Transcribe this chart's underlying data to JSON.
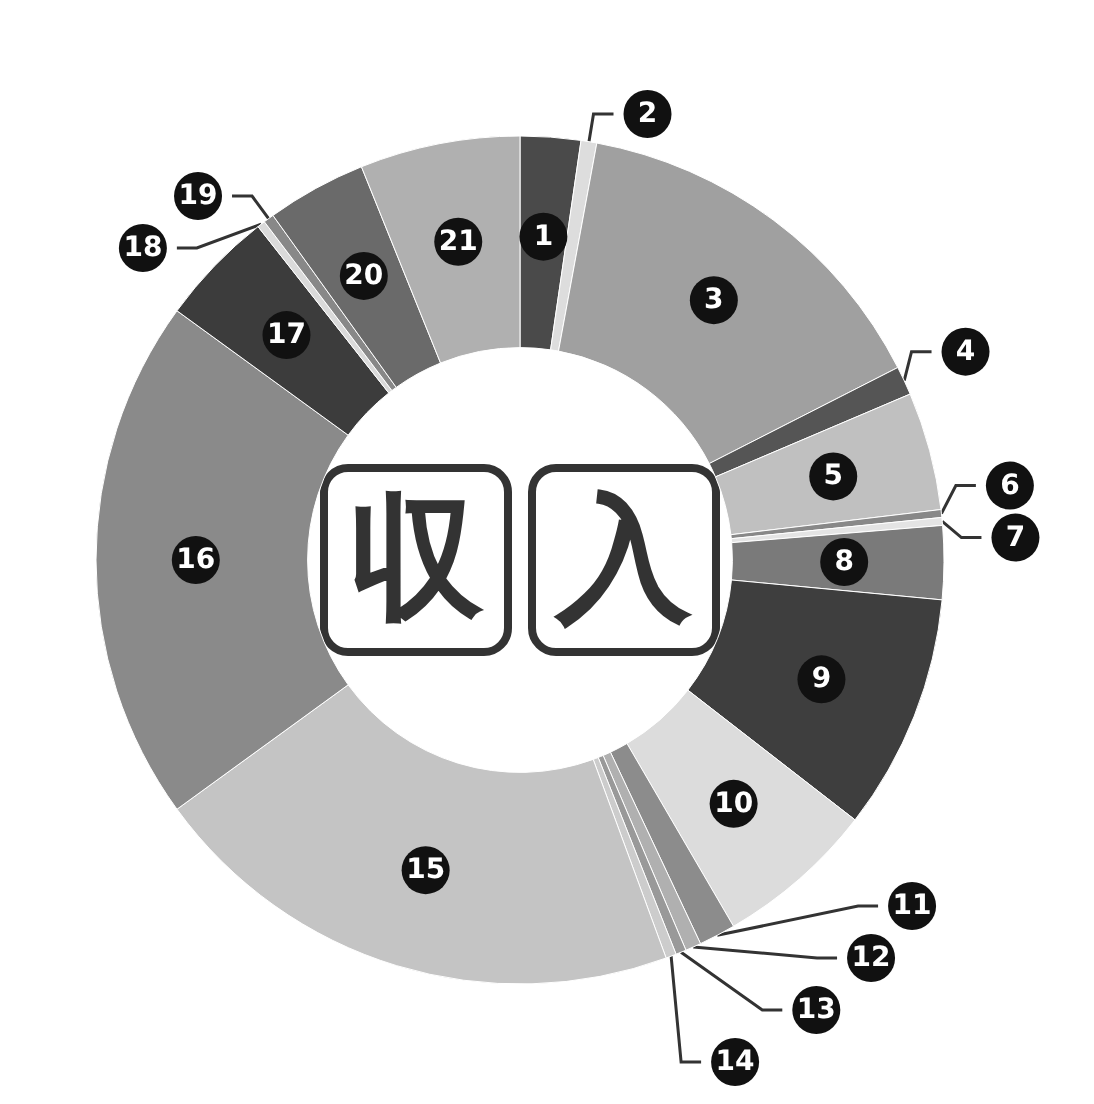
{
  "chart_data": {
    "type": "donut",
    "title": "収入",
    "categories": [
      "1",
      "2",
      "3",
      "4",
      "5",
      "6",
      "7",
      "8",
      "9",
      "10",
      "11",
      "12",
      "13",
      "14",
      "15",
      "16",
      "17",
      "18",
      "19",
      "20",
      "21"
    ],
    "values": [
      2.3,
      0.6,
      14.6,
      1.1,
      4.5,
      0.3,
      0.3,
      2.8,
      9.0,
      6.1,
      1.4,
      0.6,
      0.4,
      0.4,
      20.6,
      20.0,
      4.4,
      0.3,
      0.4,
      3.8,
      6.1
    ],
    "colors": [
      "#4a4a4a",
      "#dddddd",
      "#a0a0a0",
      "#555555",
      "#c0c0c0",
      "#888888",
      "#e4e4e4",
      "#7a7a7a",
      "#3e3e3e",
      "#dcdcdc",
      "#8c8c8c",
      "#b0b0b0",
      "#999999",
      "#cccccc",
      "#c4c4c4",
      "#8a8a8a",
      "#3c3c3c",
      "#dadada",
      "#888888",
      "#6a6a6a",
      "#b0b0b0"
    ],
    "legend": false
  }
}
